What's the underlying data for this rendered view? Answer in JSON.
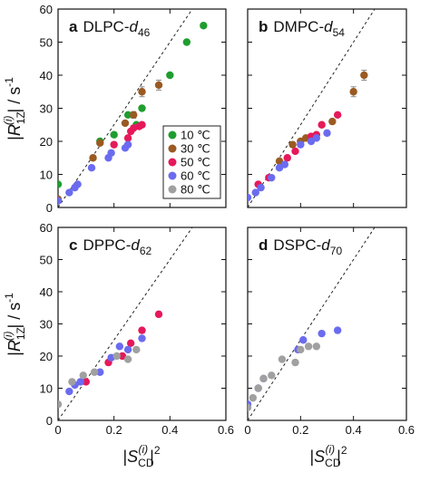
{
  "figure": {
    "ylabel": "|R_1Z^(i)| / s^-1",
    "xlabel": "|S_CD^(i)|^2",
    "legend": [
      {
        "label": "10 ℃",
        "color": "#1f9e2f"
      },
      {
        "label": "30 ℃",
        "color": "#9a5a22"
      },
      {
        "label": "50 ℃",
        "color": "#e6195a"
      },
      {
        "label": "60 ℃",
        "color": "#6b6bf0"
      },
      {
        "label": "80 ℃",
        "color": "#a0a0a0"
      }
    ],
    "legend_position": "lower-right of panel a",
    "error_bar_color": "#8a8a8a",
    "reference_line_style": "dashed black"
  },
  "chart_data": [
    {
      "type": "scatter",
      "panel_letter": "a",
      "title": "DLPC-d",
      "title_sub": "46",
      "xlim": [
        0,
        0.6
      ],
      "ylim": [
        0,
        60
      ],
      "xticks": [
        0,
        0.2,
        0.4,
        0.6
      ],
      "yticks": [
        0,
        10,
        20,
        30,
        40,
        50,
        60
      ],
      "show_xtick_labels": false,
      "show_ytick_labels": true,
      "reference_line": {
        "from": [
          0,
          0
        ],
        "to": [
          0.6,
          75
        ]
      },
      "series": [
        {
          "name": "10 ℃",
          "color": "#1f9e2f",
          "points": [
            [
              0.0,
              7
            ],
            [
              0.15,
              20
            ],
            [
              0.2,
              22
            ],
            [
              0.25,
              28
            ],
            [
              0.28,
              25
            ],
            [
              0.3,
              30
            ],
            [
              0.4,
              40
            ],
            [
              0.46,
              50
            ],
            [
              0.52,
              55
            ]
          ]
        },
        {
          "name": "30 ℃",
          "color": "#9a5a22",
          "points": [
            [
              0.0,
              2.5
            ],
            [
              0.125,
              15
            ],
            [
              0.15,
              19.5
            ],
            [
              0.24,
              25.5
            ],
            [
              0.27,
              28
            ],
            [
              0.3,
              35
            ],
            [
              0.36,
              37
            ]
          ],
          "error_bars": [
            [
              0.27,
              27,
              29
            ],
            [
              0.3,
              33.5,
              36.5
            ],
            [
              0.36,
              35.5,
              38.5
            ]
          ]
        },
        {
          "name": "50 ℃",
          "color": "#e6195a",
          "points": [
            [
              0.2,
              19
            ],
            [
              0.25,
              21
            ],
            [
              0.26,
              23
            ],
            [
              0.27,
              24
            ],
            [
              0.29,
              24.5
            ],
            [
              0.3,
              25
            ]
          ]
        },
        {
          "name": "60 ℃",
          "color": "#6b6bf0",
          "points": [
            [
              0.0,
              2
            ],
            [
              0.04,
              4.5
            ],
            [
              0.06,
              6
            ],
            [
              0.07,
              7
            ],
            [
              0.12,
              12
            ],
            [
              0.18,
              15
            ],
            [
              0.19,
              16.5
            ],
            [
              0.24,
              18
            ],
            [
              0.25,
              19
            ]
          ]
        },
        {
          "name": "80 ℃",
          "color": "#a0a0a0",
          "points": []
        }
      ]
    },
    {
      "type": "scatter",
      "panel_letter": "b",
      "title": "DMPC-d",
      "title_sub": "54",
      "xlim": [
        0,
        0.6
      ],
      "ylim": [
        0,
        60
      ],
      "xticks": [
        0,
        0.2,
        0.4,
        0.6
      ],
      "yticks": [
        0,
        10,
        20,
        30,
        40,
        50,
        60
      ],
      "show_xtick_labels": false,
      "show_ytick_labels": false,
      "reference_line": {
        "from": [
          0,
          0
        ],
        "to": [
          0.6,
          75
        ]
      },
      "series": [
        {
          "name": "30 ℃",
          "color": "#9a5a22",
          "points": [
            [
              0.12,
              14
            ],
            [
              0.17,
              19
            ],
            [
              0.2,
              20
            ],
            [
              0.22,
              21
            ],
            [
              0.32,
              26
            ],
            [
              0.4,
              35
            ],
            [
              0.44,
              40
            ]
          ],
          "error_bars": [
            [
              0.4,
              33.5,
              36.5
            ],
            [
              0.44,
              38.5,
              41.5
            ]
          ]
        },
        {
          "name": "50 ℃",
          "color": "#e6195a",
          "points": [
            [
              0.04,
              7
            ],
            [
              0.08,
              9
            ],
            [
              0.15,
              15
            ],
            [
              0.18,
              17
            ],
            [
              0.24,
              21.5
            ],
            [
              0.26,
              22
            ],
            [
              0.28,
              25
            ],
            [
              0.34,
              28
            ]
          ]
        },
        {
          "name": "60 ℃",
          "color": "#6b6bf0",
          "points": [
            [
              0.0,
              3
            ],
            [
              0.03,
              4.5
            ],
            [
              0.05,
              6
            ],
            [
              0.09,
              9
            ],
            [
              0.12,
              12
            ],
            [
              0.14,
              13
            ],
            [
              0.2,
              19
            ],
            [
              0.24,
              20
            ],
            [
              0.26,
              21
            ],
            [
              0.3,
              22.5
            ]
          ]
        }
      ]
    },
    {
      "type": "scatter",
      "panel_letter": "c",
      "title": "DPPC-d",
      "title_sub": "62",
      "xlim": [
        0,
        0.6
      ],
      "ylim": [
        0,
        60
      ],
      "xticks": [
        0,
        0.2,
        0.4,
        0.6
      ],
      "yticks": [
        0,
        10,
        20,
        30,
        40,
        50,
        60
      ],
      "show_xtick_labels": true,
      "show_ytick_labels": true,
      "reference_line": {
        "from": [
          0,
          0
        ],
        "to": [
          0.6,
          75
        ]
      },
      "series": [
        {
          "name": "50 ℃",
          "color": "#e6195a",
          "points": [
            [
              0.1,
              12
            ],
            [
              0.18,
              18
            ],
            [
              0.23,
              20
            ],
            [
              0.26,
              24
            ],
            [
              0.3,
              28
            ],
            [
              0.36,
              33
            ]
          ]
        },
        {
          "name": "60 ℃",
          "color": "#6b6bf0",
          "points": [
            [
              0.04,
              9
            ],
            [
              0.06,
              11
            ],
            [
              0.08,
              12
            ],
            [
              0.15,
              15
            ],
            [
              0.19,
              19.5
            ],
            [
              0.22,
              23
            ],
            [
              0.25,
              22
            ],
            [
              0.3,
              25.5
            ]
          ]
        },
        {
          "name": "80 ℃",
          "color": "#a0a0a0",
          "points": [
            [
              0.0,
              5
            ],
            [
              0.05,
              12
            ],
            [
              0.09,
              14
            ],
            [
              0.13,
              15
            ],
            [
              0.21,
              20
            ],
            [
              0.25,
              19
            ],
            [
              0.28,
              22
            ]
          ]
        }
      ]
    },
    {
      "type": "scatter",
      "panel_letter": "d",
      "title": "DSPC-d",
      "title_sub": "70",
      "xlim": [
        0,
        0.6
      ],
      "ylim": [
        0,
        60
      ],
      "xticks": [
        0,
        0.2,
        0.4,
        0.6
      ],
      "yticks": [
        0,
        10,
        20,
        30,
        40,
        50,
        60
      ],
      "show_xtick_labels": true,
      "show_ytick_labels": false,
      "reference_line": {
        "from": [
          0,
          0
        ],
        "to": [
          0.6,
          75
        ]
      },
      "series": [
        {
          "name": "60 ℃",
          "color": "#6b6bf0",
          "points": [
            [
              0.0,
              5
            ],
            [
              0.04,
              10
            ],
            [
              0.06,
              13
            ],
            [
              0.19,
              22
            ],
            [
              0.21,
              25
            ],
            [
              0.28,
              27
            ],
            [
              0.34,
              28
            ]
          ]
        },
        {
          "name": "80 ℃",
          "color": "#a0a0a0",
          "points": [
            [
              0.0,
              4
            ],
            [
              0.02,
              7
            ],
            [
              0.04,
              10
            ],
            [
              0.06,
              13
            ],
            [
              0.09,
              14
            ],
            [
              0.13,
              19
            ],
            [
              0.18,
              18
            ],
            [
              0.2,
              22
            ],
            [
              0.23,
              23
            ],
            [
              0.26,
              23
            ]
          ]
        }
      ]
    }
  ]
}
